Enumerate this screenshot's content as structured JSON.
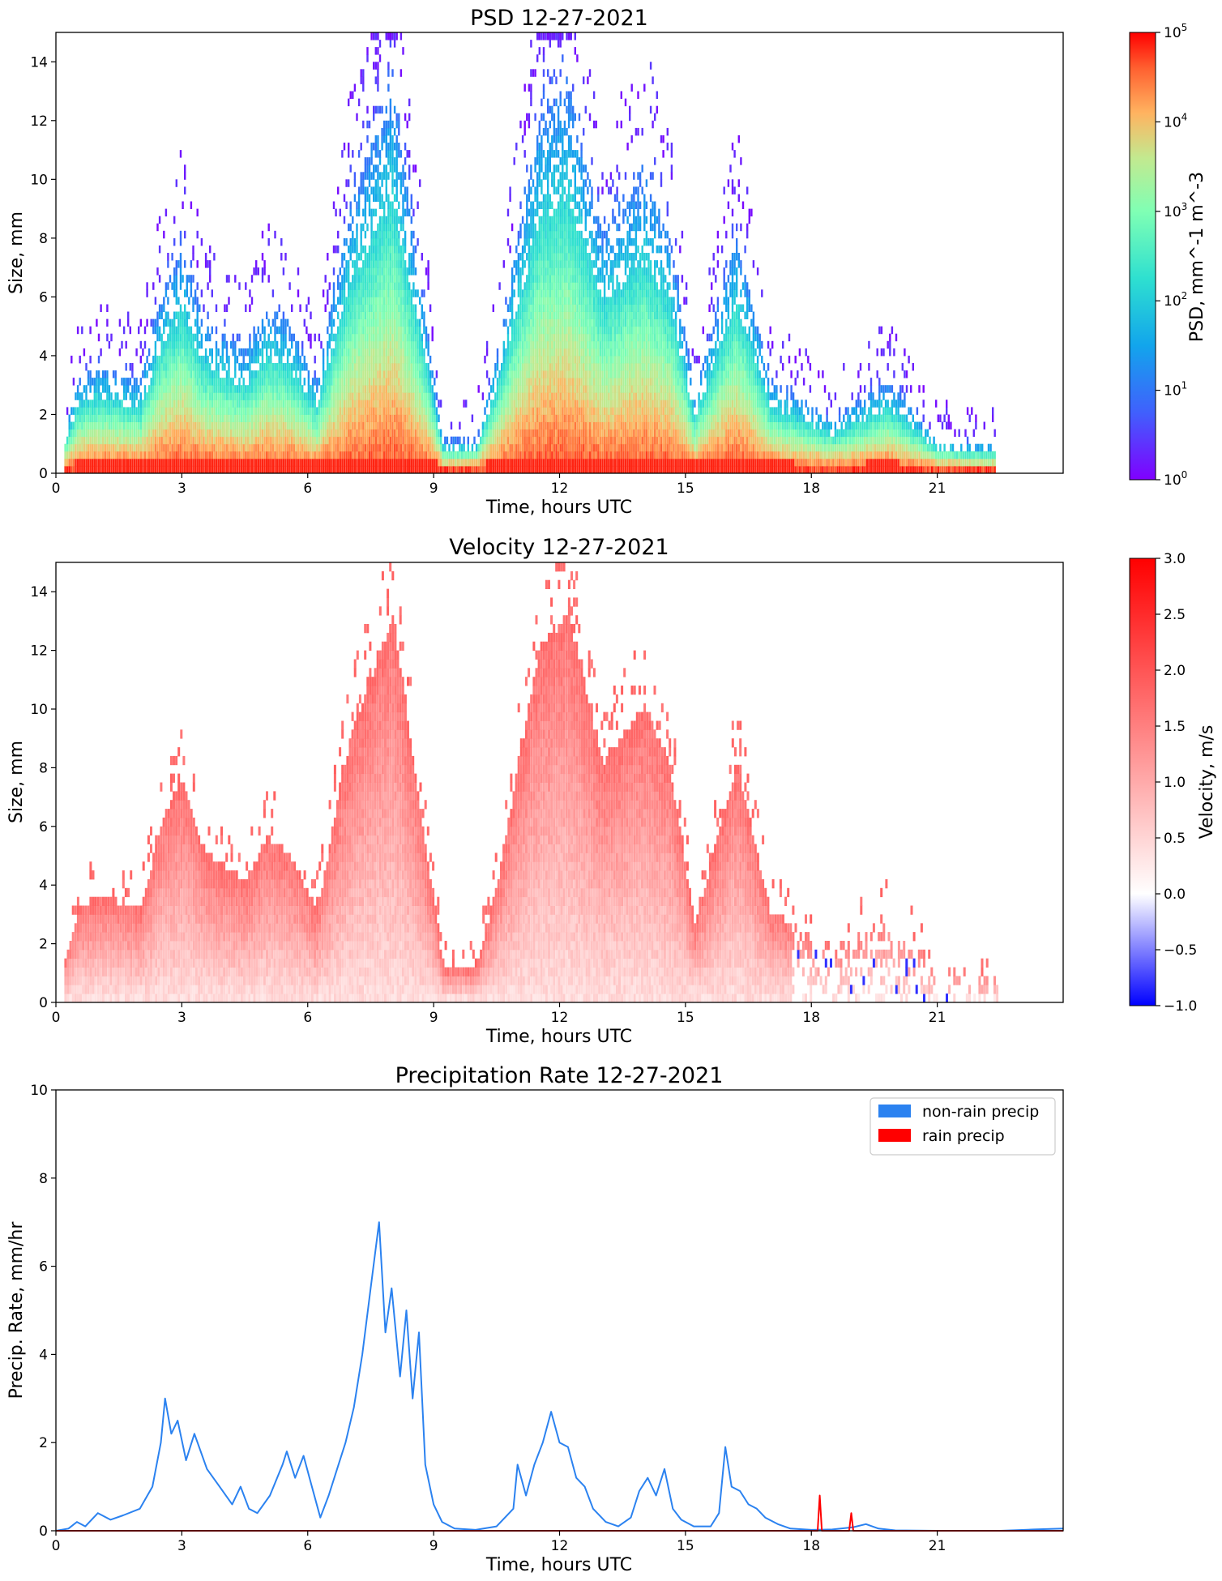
{
  "chart_data": [
    {
      "type": "heatmap",
      "title": "PSD 12-27-2021",
      "xlabel": "Time, hours UTC",
      "ylabel": "Size, mm",
      "xlim": [
        0,
        24
      ],
      "ylim": [
        0,
        15
      ],
      "x_ticks": [
        "0",
        "3",
        "6",
        "9",
        "12",
        "15",
        "18",
        "21"
      ],
      "y_ticks": [
        "0",
        "2",
        "4",
        "6",
        "8",
        "10",
        "12",
        "14"
      ],
      "colorbar": {
        "label": "PSD, mm^-1 m^-3",
        "scale": "log",
        "range": [
          1,
          100000
        ],
        "ticks": [
          "10^0",
          "10^1",
          "10^2",
          "10^3",
          "10^4",
          "10^5"
        ],
        "colormap": "rainbow"
      },
      "activity_envelope": [
        {
          "t": 0.2,
          "top": 1.4
        },
        {
          "t": 0.5,
          "top": 3.0
        },
        {
          "t": 1.0,
          "top": 3.5
        },
        {
          "t": 2.0,
          "top": 3.0
        },
        {
          "t": 2.5,
          "top": 6.0
        },
        {
          "t": 3.0,
          "top": 7.5
        },
        {
          "t": 3.5,
          "top": 5.0
        },
        {
          "t": 4.5,
          "top": 4.0
        },
        {
          "t": 5.0,
          "top": 5.5
        },
        {
          "t": 5.5,
          "top": 5.0
        },
        {
          "t": 6.2,
          "top": 3.0
        },
        {
          "t": 7.0,
          "top": 9.0
        },
        {
          "t": 8.0,
          "top": 13.0
        },
        {
          "t": 8.6,
          "top": 7.0
        },
        {
          "t": 9.2,
          "top": 1.0
        },
        {
          "t": 10.0,
          "top": 1.0
        },
        {
          "t": 10.5,
          "top": 4.0
        },
        {
          "t": 11.5,
          "top": 12.0
        },
        {
          "t": 12.2,
          "top": 13.0
        },
        {
          "t": 13.0,
          "top": 8.0
        },
        {
          "t": 14.0,
          "top": 10.0
        },
        {
          "t": 14.6,
          "top": 8.0
        },
        {
          "t": 15.2,
          "top": 2.5
        },
        {
          "t": 16.2,
          "top": 8.0
        },
        {
          "t": 17.0,
          "top": 3.0
        },
        {
          "t": 18.5,
          "top": 1.7
        },
        {
          "t": 19.8,
          "top": 3.0
        },
        {
          "t": 21.0,
          "top": 1.0
        },
        {
          "t": 22.4,
          "top": 0.8
        }
      ]
    },
    {
      "type": "heatmap",
      "title": "Velocity 12-27-2021",
      "xlabel": "Time, hours UTC",
      "ylabel": "Size, mm",
      "xlim": [
        0,
        24
      ],
      "ylim": [
        0,
        15
      ],
      "x_ticks": [
        "0",
        "3",
        "6",
        "9",
        "12",
        "15",
        "18",
        "21"
      ],
      "y_ticks": [
        "0",
        "2",
        "4",
        "6",
        "8",
        "10",
        "12",
        "14"
      ],
      "colorbar": {
        "label": "Velocity, m/s",
        "range": [
          -1.0,
          3.0
        ],
        "ticks": [
          "3.0",
          "2.5",
          "2.0",
          "1.5",
          "1.0",
          "0.5",
          "0.0",
          "−0.5",
          "−1.0"
        ],
        "colormap": "bwr"
      }
    },
    {
      "type": "line",
      "title": "Precipitation Rate 12-27-2021",
      "xlabel": "Time, hours UTC",
      "ylabel": "Precip. Rate, mm/hr",
      "xlim": [
        0,
        24
      ],
      "ylim": [
        0,
        10
      ],
      "x_ticks": [
        "0",
        "3",
        "6",
        "9",
        "12",
        "15",
        "18",
        "21"
      ],
      "y_ticks": [
        "0",
        "2",
        "4",
        "6",
        "8",
        "10"
      ],
      "legend_position": "upper right",
      "series": [
        {
          "name": "non-rain precip",
          "color": "#2b82f0",
          "points": [
            [
              0.0,
              0.0
            ],
            [
              0.3,
              0.05
            ],
            [
              0.5,
              0.2
            ],
            [
              0.7,
              0.1
            ],
            [
              1.0,
              0.4
            ],
            [
              1.3,
              0.25
            ],
            [
              1.6,
              0.35
            ],
            [
              2.0,
              0.5
            ],
            [
              2.3,
              1.0
            ],
            [
              2.5,
              2.0
            ],
            [
              2.6,
              3.0
            ],
            [
              2.75,
              2.2
            ],
            [
              2.9,
              2.5
            ],
            [
              3.1,
              1.6
            ],
            [
              3.3,
              2.2
            ],
            [
              3.6,
              1.4
            ],
            [
              3.9,
              1.0
            ],
            [
              4.2,
              0.6
            ],
            [
              4.4,
              1.0
            ],
            [
              4.6,
              0.5
            ],
            [
              4.8,
              0.4
            ],
            [
              5.1,
              0.8
            ],
            [
              5.4,
              1.5
            ],
            [
              5.5,
              1.8
            ],
            [
              5.7,
              1.2
            ],
            [
              5.9,
              1.7
            ],
            [
              6.1,
              1.0
            ],
            [
              6.3,
              0.3
            ],
            [
              6.5,
              0.8
            ],
            [
              6.7,
              1.4
            ],
            [
              6.9,
              2.0
            ],
            [
              7.1,
              2.8
            ],
            [
              7.3,
              4.0
            ],
            [
              7.5,
              5.5
            ],
            [
              7.7,
              7.0
            ],
            [
              7.85,
              4.5
            ],
            [
              8.0,
              5.5
            ],
            [
              8.2,
              3.5
            ],
            [
              8.35,
              5.0
            ],
            [
              8.5,
              3.0
            ],
            [
              8.65,
              4.5
            ],
            [
              8.8,
              1.5
            ],
            [
              9.0,
              0.6
            ],
            [
              9.2,
              0.2
            ],
            [
              9.5,
              0.05
            ],
            [
              10.0,
              0.02
            ],
            [
              10.5,
              0.1
            ],
            [
              10.9,
              0.5
            ],
            [
              11.0,
              1.5
            ],
            [
              11.2,
              0.8
            ],
            [
              11.4,
              1.5
            ],
            [
              11.6,
              2.0
            ],
            [
              11.8,
              2.7
            ],
            [
              12.0,
              2.0
            ],
            [
              12.2,
              1.9
            ],
            [
              12.4,
              1.2
            ],
            [
              12.6,
              1.0
            ],
            [
              12.8,
              0.5
            ],
            [
              13.1,
              0.2
            ],
            [
              13.4,
              0.1
            ],
            [
              13.7,
              0.3
            ],
            [
              13.9,
              0.9
            ],
            [
              14.1,
              1.2
            ],
            [
              14.3,
              0.8
            ],
            [
              14.5,
              1.4
            ],
            [
              14.7,
              0.5
            ],
            [
              14.9,
              0.25
            ],
            [
              15.2,
              0.1
            ],
            [
              15.6,
              0.1
            ],
            [
              15.8,
              0.4
            ],
            [
              15.95,
              1.9
            ],
            [
              16.1,
              1.0
            ],
            [
              16.3,
              0.9
            ],
            [
              16.5,
              0.6
            ],
            [
              16.7,
              0.5
            ],
            [
              16.9,
              0.3
            ],
            [
              17.2,
              0.15
            ],
            [
              17.5,
              0.05
            ],
            [
              18.0,
              0.02
            ],
            [
              18.5,
              0.03
            ],
            [
              19.0,
              0.08
            ],
            [
              19.3,
              0.15
            ],
            [
              19.6,
              0.05
            ],
            [
              20.0,
              0.01
            ],
            [
              21.0,
              0.0
            ],
            [
              22.5,
              0.0
            ],
            [
              23.3,
              0.03
            ],
            [
              24.0,
              0.05
            ]
          ]
        },
        {
          "name": "rain precip",
          "color": "#ff0000",
          "points": [
            [
              0.0,
              0.0
            ],
            [
              18.15,
              0.0
            ],
            [
              18.2,
              0.8
            ],
            [
              18.25,
              0.0
            ],
            [
              18.9,
              0.0
            ],
            [
              18.95,
              0.4
            ],
            [
              19.0,
              0.0
            ],
            [
              24.0,
              0.0
            ]
          ]
        }
      ]
    }
  ]
}
